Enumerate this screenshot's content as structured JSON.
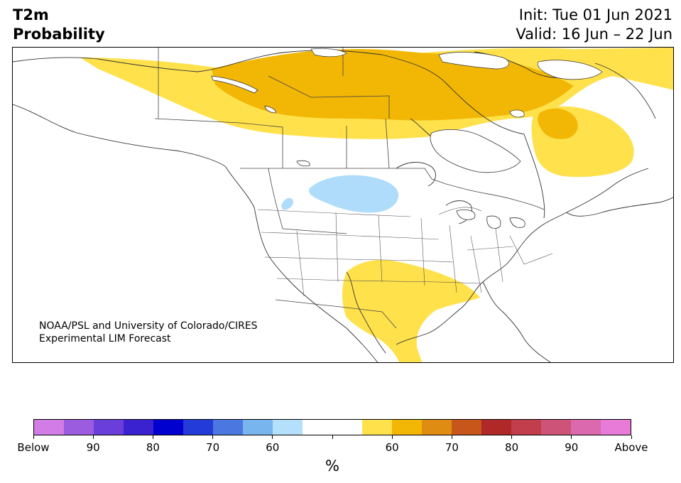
{
  "header": {
    "title_line1": "T2m",
    "title_line2": "Probability",
    "init": "Init: Tue 01 Jun 2021",
    "valid": "Valid: 16 Jun – 22 Jun"
  },
  "map": {
    "region": "North America",
    "credit_line1": "NOAA/PSL and University of Colorado/CIRES",
    "credit_line2": "Experimental LIM Forecast",
    "land_color": "#ffffff",
    "border_color": "#333333",
    "shading": {
      "above_55_60": "#ffe14b",
      "above_60_65": "#f2b705",
      "below_55_60": "#aedcfa"
    }
  },
  "colorbar": {
    "colors": [
      "#d27de6",
      "#9b5ce0",
      "#6a3fd9",
      "#3a22d1",
      "#0000cf",
      "#233bd9",
      "#4a78e0",
      "#78b4ee",
      "#b4e0fb",
      "#ffffff",
      "#ffffff",
      "#ffe14b",
      "#f2b705",
      "#df8c12",
      "#c7561a",
      "#b12828",
      "#c23e4c",
      "#cd5478",
      "#db69ae",
      "#e87ad8"
    ],
    "tick_labels": [
      "Below",
      "90",
      "80",
      "70",
      "60",
      "",
      "60",
      "70",
      "80",
      "90",
      "Above"
    ],
    "unit": "%"
  }
}
